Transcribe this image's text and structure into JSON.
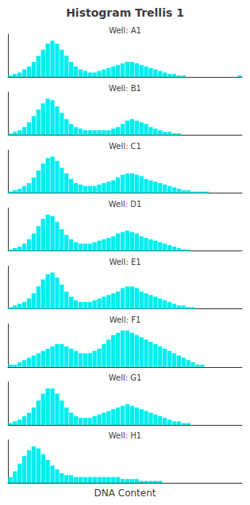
{
  "title": "Histogram Trellis 1",
  "xlabel": "DNA Content",
  "chart_data": [
    {
      "type": "bar",
      "title": "Well: A1",
      "color": "#00EEEE",
      "tick_labels": false,
      "grid": false,
      "ylim": [
        0,
        28.32
      ],
      "values": [
        1,
        2,
        3,
        5,
        7,
        10,
        14,
        18,
        22,
        24,
        22,
        18,
        14,
        10,
        7,
        5,
        4,
        3,
        3,
        4,
        5,
        6,
        7,
        8,
        9,
        10,
        10,
        9,
        8,
        7,
        6,
        5,
        4,
        3,
        2,
        2,
        1,
        1,
        0,
        0,
        0,
        0,
        0,
        0,
        0,
        0,
        0,
        0,
        0,
        1
      ]
    },
    {
      "type": "bar",
      "title": "Well: B1",
      "color": "#00EEEE",
      "tick_labels": false,
      "grid": false,
      "ylim": [
        0,
        27.14
      ],
      "values": [
        1,
        2,
        3,
        5,
        8,
        12,
        16,
        20,
        23,
        22,
        18,
        14,
        10,
        7,
        5,
        4,
        3,
        3,
        3,
        3,
        3,
        3,
        4,
        5,
        7,
        9,
        10,
        9,
        8,
        7,
        5,
        4,
        3,
        2,
        2,
        1,
        1,
        0,
        0,
        0,
        0,
        0,
        0,
        0,
        0,
        0,
        0,
        0,
        0,
        0
      ]
    },
    {
      "type": "bar",
      "title": "Well: C1",
      "color": "#00EEEE",
      "tick_labels": false,
      "grid": false,
      "ylim": [
        0,
        30.68
      ],
      "values": [
        1,
        2,
        3,
        5,
        7,
        11,
        16,
        21,
        25,
        26,
        23,
        18,
        14,
        10,
        7,
        6,
        5,
        5,
        5,
        6,
        7,
        8,
        9,
        11,
        13,
        14,
        14,
        13,
        12,
        10,
        9,
        8,
        7,
        6,
        5,
        4,
        3,
        2,
        2,
        1,
        1,
        1,
        1,
        0,
        0,
        0,
        0,
        0,
        0,
        0
      ]
    },
    {
      "type": "bar",
      "title": "Well: D1",
      "color": "#00EEEE",
      "tick_labels": false,
      "grid": false,
      "ylim": [
        0,
        29.5
      ],
      "values": [
        1,
        2,
        3,
        5,
        8,
        12,
        17,
        22,
        25,
        24,
        20,
        15,
        11,
        8,
        6,
        5,
        5,
        5,
        6,
        7,
        8,
        9,
        10,
        12,
        13,
        14,
        13,
        12,
        10,
        9,
        8,
        7,
        6,
        5,
        4,
        3,
        2,
        1,
        1,
        0,
        0,
        0,
        0,
        0,
        0,
        0,
        0,
        0,
        0,
        0
      ]
    },
    {
      "type": "bar",
      "title": "Well: E1",
      "color": "#00EEEE",
      "tick_labels": false,
      "grid": false,
      "ylim": [
        0,
        24.78
      ],
      "values": [
        1,
        2,
        3,
        4,
        6,
        9,
        13,
        17,
        20,
        21,
        18,
        14,
        10,
        7,
        5,
        4,
        4,
        4,
        5,
        6,
        7,
        8,
        9,
        10,
        12,
        13,
        13,
        12,
        10,
        9,
        8,
        7,
        6,
        5,
        4,
        3,
        2,
        2,
        1,
        1,
        0,
        0,
        0,
        0,
        0,
        0,
        0,
        0,
        0,
        0
      ]
    },
    {
      "type": "bar",
      "title": "Well: F1",
      "color": "#00EEEE",
      "tick_labels": false,
      "grid": false,
      "ylim": [
        0,
        18.88
      ],
      "values": [
        1,
        1,
        2,
        3,
        4,
        5,
        6,
        7,
        8,
        9,
        10,
        10,
        9,
        8,
        7,
        6,
        6,
        6,
        7,
        8,
        10,
        12,
        14,
        15,
        16,
        16,
        15,
        14,
        13,
        12,
        11,
        10,
        9,
        8,
        7,
        6,
        5,
        4,
        3,
        2,
        1,
        1,
        0,
        0,
        0,
        0,
        0,
        0,
        0,
        0
      ]
    },
    {
      "type": "bar",
      "title": "Well: G1",
      "color": "#00EEEE",
      "tick_labels": false,
      "grid": false,
      "ylim": [
        0,
        24.78
      ],
      "values": [
        1,
        2,
        3,
        5,
        7,
        10,
        14,
        18,
        21,
        21,
        18,
        14,
        10,
        7,
        5,
        4,
        4,
        4,
        5,
        6,
        7,
        8,
        9,
        10,
        11,
        12,
        11,
        10,
        9,
        8,
        7,
        6,
        5,
        4,
        3,
        2,
        2,
        1,
        1,
        0,
        0,
        0,
        0,
        0,
        0,
        0,
        0,
        0,
        0,
        0
      ]
    },
    {
      "type": "bar",
      "title": "Well: H1",
      "color": "#00EEEE",
      "tick_labels": false,
      "grid": false,
      "ylim": [
        0,
        22.42
      ],
      "values": [
        3,
        6,
        10,
        14,
        17,
        19,
        18,
        15,
        12,
        9,
        7,
        5,
        4,
        4,
        3,
        3,
        3,
        3,
        3,
        3,
        3,
        3,
        3,
        3,
        2,
        2,
        2,
        2,
        1,
        1,
        1,
        1,
        1,
        0,
        0,
        0,
        0,
        0,
        0,
        0,
        0,
        0,
        0,
        0,
        0,
        0,
        0,
        0,
        0,
        0
      ]
    }
  ]
}
